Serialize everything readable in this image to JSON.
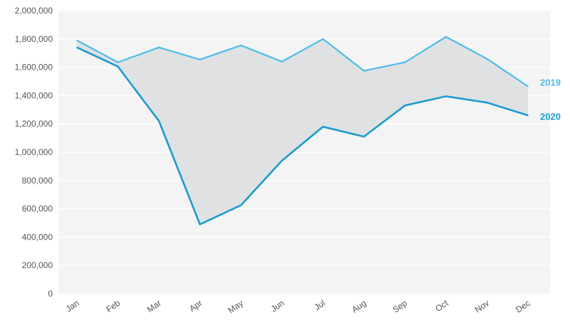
{
  "chart_data": {
    "type": "line",
    "title": "",
    "xlabel": "",
    "ylabel": "",
    "categories": [
      "Jan",
      "Feb",
      "Mar",
      "Apr",
      "May",
      "Jun",
      "Jul",
      "Aug",
      "Sep",
      "Oct",
      "Nov",
      "Dec"
    ],
    "ylim": [
      0,
      2000000
    ],
    "y_ticks": [
      "0",
      "200,000",
      "400,000",
      "600,000",
      "800,000",
      "1,000,000",
      "1,200,000",
      "1,400,000",
      "1,600,000",
      "1,800,000",
      "2,000,000"
    ],
    "y_tick_values": [
      0,
      200000,
      400000,
      600000,
      800000,
      1000000,
      1200000,
      1400000,
      1600000,
      1800000,
      2000000
    ],
    "grid": true,
    "legend": "inline-right",
    "fill_between": true,
    "colors": {
      "plot_bg": "#f4f4f4",
      "fill": "#e0e1e3",
      "gridline": "#ffffff"
    },
    "series": [
      {
        "name": "2019",
        "color": "#4dbde8",
        "values": [
          1790000,
          1635000,
          1740000,
          1655000,
          1755000,
          1640000,
          1800000,
          1575000,
          1635000,
          1815000,
          1660000,
          1465000
        ]
      },
      {
        "name": "2020",
        "color": "#1b9bcc",
        "values": [
          1740000,
          1605000,
          1220000,
          490000,
          625000,
          940000,
          1180000,
          1110000,
          1330000,
          1395000,
          1350000,
          1260000
        ]
      }
    ]
  }
}
